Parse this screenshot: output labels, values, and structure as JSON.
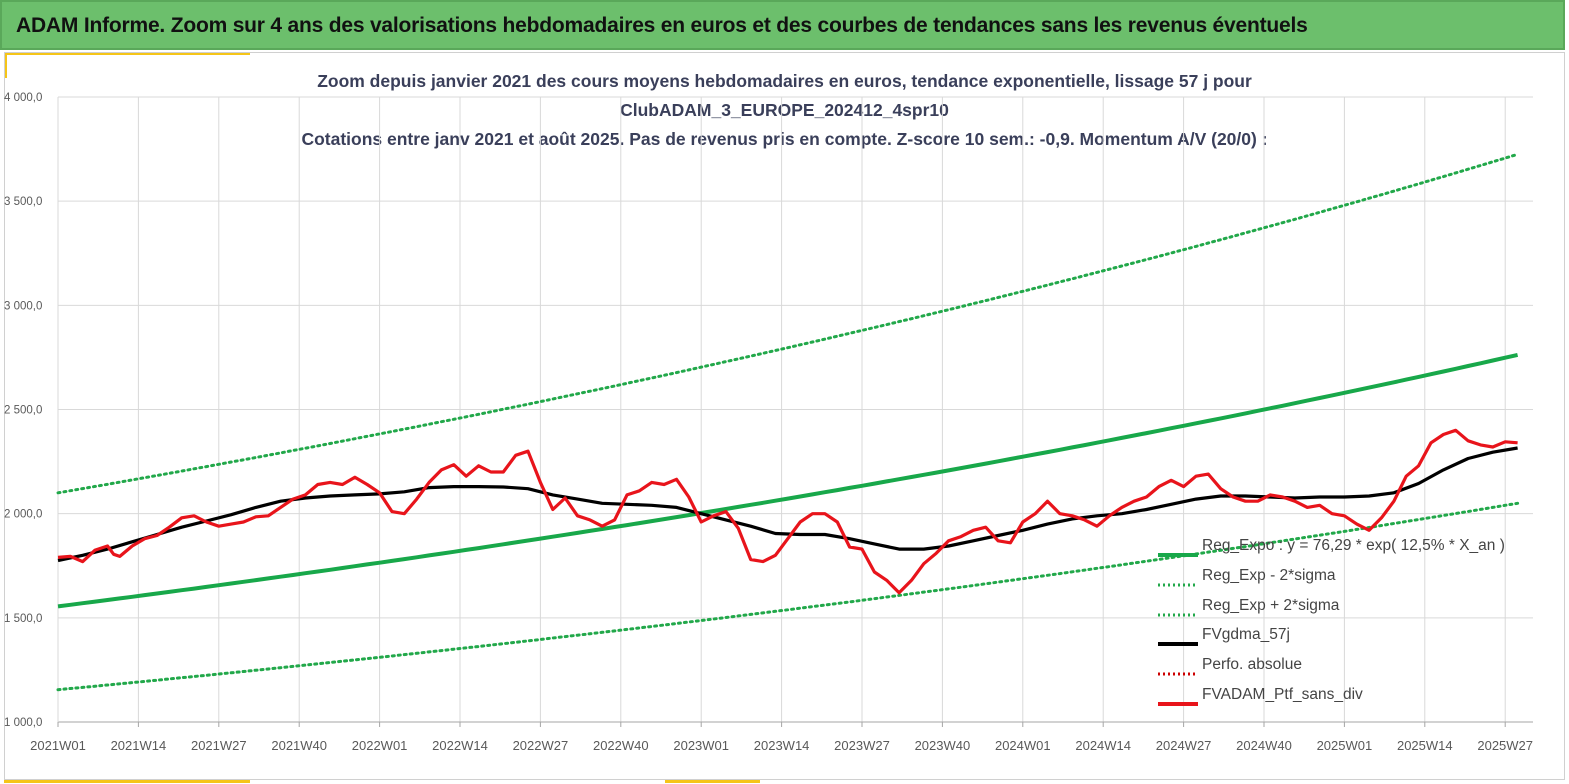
{
  "header": {
    "title": "ADAM Informe. Zoom sur 4 ans des valorisations hebdomadaires en euros et des courbes de tendances sans les revenus éventuels"
  },
  "colors": {
    "banner": "#6cbf6c",
    "accent": "#f5c518",
    "trend": "#18a84a",
    "sigma": "#22a84a",
    "smooth": "#000000",
    "perfo": "#cc0000",
    "portfolio": "#e8141b"
  },
  "chart_data": {
    "type": "line",
    "title_lines": [
      "Zoom depuis janvier 2021 des cours moyens hebdomadaires  en euros, tendance exponentielle, lissage 57 j pour",
      "ClubADAM_3_EUROPE_202412_4spr10",
      "Cotations  entre janv 2021 et août 2025. Pas de revenus pris en compte. Z-score 10 sem.: -0,9. Momentum A/V (20/0) :"
    ],
    "x_ticks": [
      "2021W01",
      "2021W14",
      "2021W27",
      "2021W40",
      "2022W01",
      "2022W14",
      "2022W27",
      "2022W40",
      "2023W01",
      "2023W14",
      "2023W27",
      "2023W40",
      "2024W01",
      "2024W14",
      "2024W27",
      "2024W40",
      "2025W01",
      "2025W14",
      "2025W27"
    ],
    "y_ticks": [
      "1 000,0",
      "1 500,0",
      "2 000,0",
      "2 500,0",
      "3 000,0",
      "3 500,0",
      "4 000,0"
    ],
    "ylim": [
      1000,
      4000
    ],
    "weeks_per_tick": 13,
    "total_weeks": 236,
    "grid": true,
    "legend_position": "bottom-right",
    "trend_start": 1555,
    "trend_end": 2762,
    "sigma_upper_start": 2100,
    "sigma_upper_end": 3725,
    "sigma_lower_start": 1155,
    "sigma_lower_end": 2050,
    "series": [
      {
        "name": "Reg_Expo : y = 76,29 * exp( 12,5% *  X_an )",
        "style": "trend"
      },
      {
        "name": "Reg_Exp - 2*sigma",
        "style": "sigma"
      },
      {
        "name": "Reg_Exp + 2*sigma",
        "style": "sigma"
      },
      {
        "name": "FVgdma_57j",
        "style": "smooth",
        "points": [
          [
            0,
            1775
          ],
          [
            4,
            1800
          ],
          [
            8,
            1830
          ],
          [
            12,
            1865
          ],
          [
            16,
            1900
          ],
          [
            20,
            1935
          ],
          [
            24,
            1965
          ],
          [
            28,
            1995
          ],
          [
            32,
            2030
          ],
          [
            36,
            2060
          ],
          [
            40,
            2075
          ],
          [
            44,
            2085
          ],
          [
            48,
            2090
          ],
          [
            52,
            2095
          ],
          [
            56,
            2105
          ],
          [
            60,
            2125
          ],
          [
            64,
            2130
          ],
          [
            68,
            2130
          ],
          [
            72,
            2128
          ],
          [
            76,
            2120
          ],
          [
            80,
            2090
          ],
          [
            84,
            2070
          ],
          [
            88,
            2050
          ],
          [
            92,
            2045
          ],
          [
            96,
            2040
          ],
          [
            100,
            2030
          ],
          [
            104,
            2000
          ],
          [
            108,
            1970
          ],
          [
            112,
            1940
          ],
          [
            116,
            1905
          ],
          [
            120,
            1900
          ],
          [
            124,
            1900
          ],
          [
            128,
            1880
          ],
          [
            132,
            1855
          ],
          [
            136,
            1830
          ],
          [
            140,
            1830
          ],
          [
            144,
            1845
          ],
          [
            148,
            1870
          ],
          [
            152,
            1895
          ],
          [
            156,
            1920
          ],
          [
            160,
            1950
          ],
          [
            164,
            1975
          ],
          [
            168,
            1990
          ],
          [
            172,
            2000
          ],
          [
            176,
            2020
          ],
          [
            180,
            2045
          ],
          [
            184,
            2070
          ],
          [
            188,
            2085
          ],
          [
            192,
            2085
          ],
          [
            196,
            2080
          ],
          [
            200,
            2075
          ],
          [
            204,
            2080
          ],
          [
            208,
            2080
          ],
          [
            212,
            2085
          ],
          [
            216,
            2100
          ],
          [
            220,
            2145
          ],
          [
            224,
            2210
          ],
          [
            228,
            2265
          ],
          [
            232,
            2295
          ],
          [
            236,
            2315
          ]
        ]
      },
      {
        "name": "Perfo. absolue",
        "style": "perfo"
      },
      {
        "name": "FVADAM_Ptf_sans_div",
        "style": "portfolio",
        "points": [
          [
            0,
            1790
          ],
          [
            2,
            1795
          ],
          [
            4,
            1770
          ],
          [
            6,
            1825
          ],
          [
            8,
            1845
          ],
          [
            9,
            1805
          ],
          [
            10,
            1795
          ],
          [
            12,
            1845
          ],
          [
            14,
            1880
          ],
          [
            16,
            1895
          ],
          [
            18,
            1935
          ],
          [
            20,
            1980
          ],
          [
            22,
            1990
          ],
          [
            24,
            1960
          ],
          [
            26,
            1940
          ],
          [
            28,
            1950
          ],
          [
            30,
            1960
          ],
          [
            32,
            1985
          ],
          [
            34,
            1990
          ],
          [
            36,
            2030
          ],
          [
            38,
            2070
          ],
          [
            40,
            2090
          ],
          [
            42,
            2140
          ],
          [
            44,
            2150
          ],
          [
            46,
            2140
          ],
          [
            48,
            2175
          ],
          [
            50,
            2140
          ],
          [
            52,
            2100
          ],
          [
            54,
            2010
          ],
          [
            56,
            2000
          ],
          [
            58,
            2070
          ],
          [
            60,
            2150
          ],
          [
            62,
            2210
          ],
          [
            64,
            2235
          ],
          [
            66,
            2180
          ],
          [
            68,
            2230
          ],
          [
            70,
            2200
          ],
          [
            72,
            2200
          ],
          [
            74,
            2280
          ],
          [
            76,
            2300
          ],
          [
            78,
            2150
          ],
          [
            80,
            2020
          ],
          [
            82,
            2075
          ],
          [
            84,
            1990
          ],
          [
            86,
            1970
          ],
          [
            88,
            1940
          ],
          [
            90,
            1970
          ],
          [
            92,
            2090
          ],
          [
            94,
            2110
          ],
          [
            96,
            2150
          ],
          [
            98,
            2140
          ],
          [
            100,
            2165
          ],
          [
            102,
            2080
          ],
          [
            104,
            1960
          ],
          [
            106,
            1990
          ],
          [
            108,
            2010
          ],
          [
            110,
            1930
          ],
          [
            112,
            1780
          ],
          [
            114,
            1770
          ],
          [
            116,
            1800
          ],
          [
            118,
            1880
          ],
          [
            120,
            1960
          ],
          [
            122,
            2000
          ],
          [
            124,
            2000
          ],
          [
            126,
            1960
          ],
          [
            128,
            1840
          ],
          [
            130,
            1830
          ],
          [
            132,
            1720
          ],
          [
            134,
            1680
          ],
          [
            136,
            1620
          ],
          [
            138,
            1680
          ],
          [
            140,
            1760
          ],
          [
            142,
            1810
          ],
          [
            144,
            1870
          ],
          [
            146,
            1890
          ],
          [
            148,
            1920
          ],
          [
            150,
            1935
          ],
          [
            152,
            1870
          ],
          [
            154,
            1860
          ],
          [
            156,
            1960
          ],
          [
            158,
            2000
          ],
          [
            160,
            2060
          ],
          [
            162,
            2000
          ],
          [
            164,
            1990
          ],
          [
            166,
            1970
          ],
          [
            168,
            1940
          ],
          [
            170,
            1990
          ],
          [
            172,
            2030
          ],
          [
            174,
            2060
          ],
          [
            176,
            2080
          ],
          [
            178,
            2130
          ],
          [
            180,
            2160
          ],
          [
            182,
            2130
          ],
          [
            184,
            2180
          ],
          [
            186,
            2190
          ],
          [
            188,
            2120
          ],
          [
            190,
            2080
          ],
          [
            192,
            2060
          ],
          [
            194,
            2060
          ],
          [
            196,
            2090
          ],
          [
            198,
            2080
          ],
          [
            200,
            2060
          ],
          [
            202,
            2030
          ],
          [
            204,
            2040
          ],
          [
            206,
            2000
          ],
          [
            208,
            1990
          ],
          [
            210,
            1950
          ],
          [
            212,
            1920
          ],
          [
            214,
            1980
          ],
          [
            216,
            2060
          ],
          [
            218,
            2180
          ],
          [
            220,
            2230
          ],
          [
            222,
            2340
          ],
          [
            224,
            2380
          ],
          [
            226,
            2400
          ],
          [
            228,
            2350
          ],
          [
            230,
            2330
          ],
          [
            232,
            2320
          ],
          [
            234,
            2345
          ],
          [
            236,
            2340
          ]
        ]
      }
    ]
  }
}
